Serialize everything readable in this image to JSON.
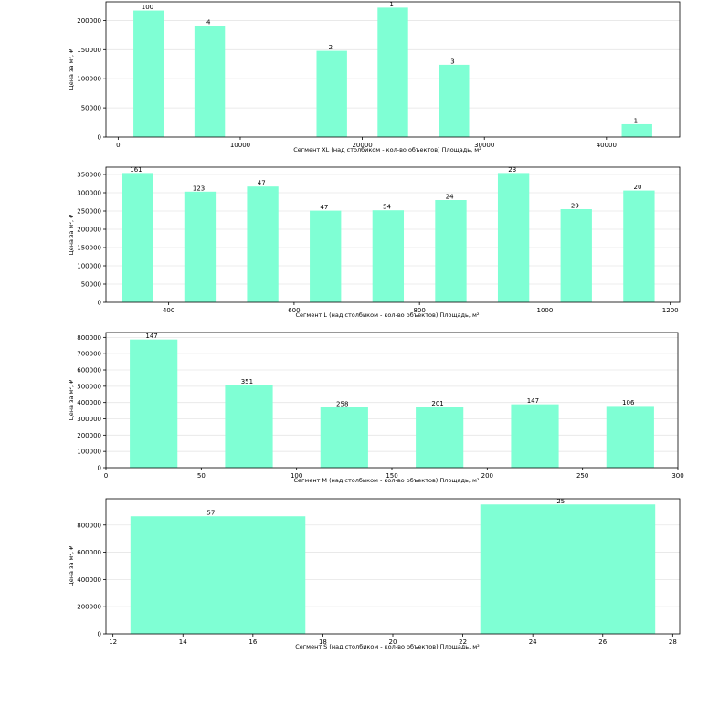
{
  "style": {
    "bar_color": "#7fffd4",
    "grid_color": "#e6e6e6",
    "axis_color": "#000000"
  },
  "chart_data": [
    {
      "type": "bar",
      "xlabel": "Сегмент XL (над столбиком - кол-во объектов)   Площадь, м²",
      "ylabel": "Цена за м², ₽",
      "xlim": [
        -1000,
        46000
      ],
      "ylim": [
        0,
        232000
      ],
      "grid": "y",
      "bar_width": 2500,
      "x_ticks": [
        0,
        10000,
        20000,
        30000,
        40000
      ],
      "y_ticks": [
        0,
        50000,
        100000,
        150000,
        200000
      ],
      "x": [
        2500,
        7500,
        17500,
        22500,
        27500,
        42500
      ],
      "values": [
        217000,
        191000,
        148000,
        222000,
        124000,
        22000
      ],
      "bar_labels": [
        "100",
        "4",
        "2",
        "1",
        "3",
        "1"
      ]
    },
    {
      "type": "bar",
      "xlabel": "Сегмент L (над столбиком - кол-во объектов)   Площадь, м²",
      "ylabel": "Цена за м², ₽",
      "xlim": [
        300,
        1215
      ],
      "ylim": [
        0,
        370000
      ],
      "grid": "y",
      "bar_width": 50,
      "x_ticks": [
        400,
        600,
        800,
        1000,
        1200
      ],
      "y_ticks": [
        0,
        50000,
        100000,
        150000,
        200000,
        250000,
        300000,
        350000
      ],
      "x": [
        350,
        450,
        550,
        650,
        750,
        850,
        950,
        1050,
        1150
      ],
      "values": [
        354000,
        303000,
        317000,
        251000,
        252000,
        280000,
        354000,
        255000,
        306000
      ],
      "bar_labels": [
        "161",
        "123",
        "47",
        "47",
        "54",
        "24",
        "23",
        "29",
        "20"
      ]
    },
    {
      "type": "bar",
      "xlabel": "Сегмент M (над столбиком - кол-во объектов)   Площадь, м²",
      "ylabel": "Цена за м², ₽",
      "xlim": [
        0,
        300
      ],
      "ylim": [
        0,
        830000
      ],
      "grid": "y",
      "bar_width": 25,
      "x_ticks": [
        0,
        50,
        100,
        150,
        200,
        250,
        300
      ],
      "y_ticks": [
        0,
        100000,
        200000,
        300000,
        400000,
        500000,
        600000,
        700000,
        800000
      ],
      "x": [
        25,
        75,
        125,
        175,
        225,
        275
      ],
      "values": [
        787000,
        508000,
        371000,
        373000,
        389000,
        379000
      ],
      "bar_labels": [
        "147",
        "351",
        "258",
        "201",
        "147",
        "106"
      ]
    },
    {
      "type": "bar",
      "xlabel": "Сегмент S (над столбиком - кол-во объектов)   Площадь, м²",
      "ylabel": "Цена за м², ₽",
      "xlim": [
        11.8,
        28.2
      ],
      "ylim": [
        0,
        993000
      ],
      "grid": "y",
      "bar_width": 5,
      "x_ticks": [
        12,
        14,
        16,
        18,
        20,
        22,
        24,
        26,
        28
      ],
      "y_ticks": [
        0,
        200000,
        400000,
        600000,
        800000
      ],
      "x": [
        15,
        25
      ],
      "values": [
        864000,
        951000
      ],
      "bar_labels": [
        "57",
        "25"
      ]
    }
  ]
}
